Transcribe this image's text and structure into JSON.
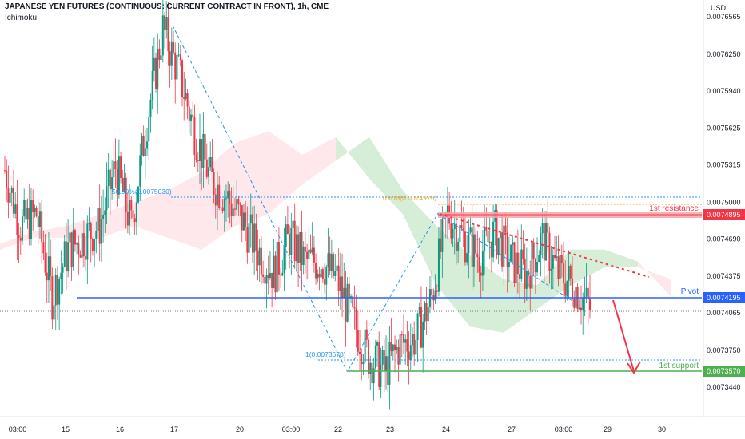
{
  "header": {
    "title": "JAPANESE YEN FUTURES (CONTINUOUS: CURRENT CONTRACT IN FRONT), 1h, CME",
    "indicator": "Ichimoku",
    "currency": "USD"
  },
  "chart_data": {
    "type": "candlestick",
    "ylim": [
      0.00733,
      0.00766
    ],
    "y_ticks": [
      "0.0076565",
      "0.0076250",
      "0.0075940",
      "0.0075625",
      "0.0075315",
      "0.0075000",
      "0.0074690",
      "0.0074375",
      "0.0074065",
      "0.0073750",
      "0.0073440"
    ],
    "x_ticks": [
      "03:00",
      "15",
      "16",
      "17",
      "20",
      "03:00",
      "22",
      "23",
      "24",
      "27",
      "03:00",
      "29",
      "30"
    ],
    "price_path": [
      0.007527,
      0.00748,
      0.00749,
      0.00742,
      0.00746,
      0.00747,
      0.00748,
      0.00753,
      0.00748,
      0.00757,
      0.007646,
      0.00761,
      0.00756,
      0.00752,
      0.007505,
      0.007485,
      0.00746,
      0.00744,
      0.00747,
      0.00745,
      0.00745,
      0.007435,
      0.0074,
      0.00737,
      0.007357,
      0.00738,
      0.007385,
      0.00742,
      0.00749,
      0.00747,
      0.007455,
      0.007475,
      0.00745,
      0.00744,
      0.00747,
      0.00744,
      0.00743,
      0.00741
    ],
    "cloud_a": [
      0.00746,
      0.00747,
      0.00747,
      0.00747,
      0.00748,
      0.00747,
      0.00746,
      0.00748,
      0.00749,
      0.007515,
      0.007535,
      0.007555,
      0.00751,
      0.00748,
      0.007455,
      0.007435,
      0.00743,
      0.00746,
      0.00746,
      0.00745,
      0.00742
    ],
    "cloud_b": [
      0.007465,
      0.007475,
      0.00748,
      0.00749,
      0.0075,
      0.00751,
      0.007525,
      0.00755,
      0.00756,
      0.00754,
      0.007555,
      0.00752,
      0.00749,
      0.00743,
      0.007395,
      0.00739,
      0.00741,
      0.00743,
      0.007445,
      0.007445,
      0.007435
    ],
    "levels": [
      {
        "name": "1st resistance",
        "value": "0.0074895",
        "color": "#f23645"
      },
      {
        "name": "Pivot",
        "value": "0.0074195",
        "color": "#2962ff"
      },
      {
        "name": "1st support",
        "value": "0.0073570",
        "color": "#4caf50"
      }
    ],
    "last_price": 0.007408,
    "fib_labels": [
      "50.00%(0.0075030)",
      "0.618(0.0074975)",
      "1(0.0073670)"
    ],
    "colors": {
      "up": "#089981",
      "down": "#f23645",
      "cloud_bull": "#a5d6a7",
      "cloud_bear": "#ffcdd2",
      "fib_line": "#2196f3",
      "fib_gold": "#f5a623"
    }
  }
}
